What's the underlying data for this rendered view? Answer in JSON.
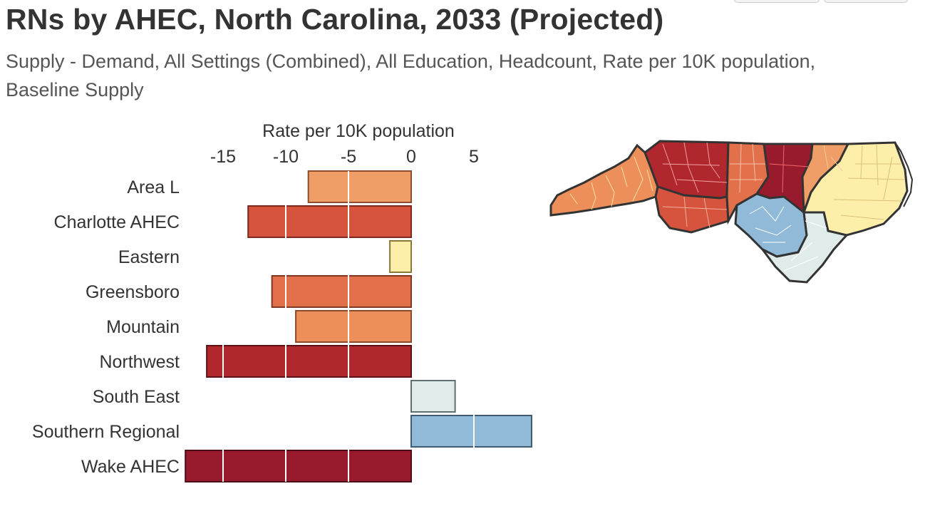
{
  "title": "RNs by AHEC, North Carolina, 2033 (Projected)",
  "subtitle": "Supply - Demand, All Settings (Combined), All Education, Headcount, Rate per 10K population, Baseline Supply",
  "chart_data": {
    "type": "bar",
    "orientation": "horizontal",
    "title": "RNs by AHEC, North Carolina, 2033 (Projected)",
    "xlabel": "Rate per 10K population",
    "ylabel": "",
    "xlim": [
      -18,
      9
    ],
    "x_ticks": [
      -15,
      -10,
      -5,
      0,
      5
    ],
    "x_tick_labels": [
      "-15",
      "-10",
      "-5",
      "0",
      "5"
    ],
    "grid": true,
    "categories": [
      "Area L",
      "Charlotte AHEC",
      "Eastern",
      "Greensboro",
      "Mountain",
      "Northwest",
      "South East",
      "Southern Regional",
      "Wake AHEC"
    ],
    "values": [
      -8.2,
      -13.0,
      -1.7,
      -11.1,
      -9.2,
      -16.3,
      3.5,
      9.6,
      -18.0
    ],
    "colors": [
      "#ee9e66",
      "#d6533d",
      "#fdeeaa",
      "#e2704b",
      "#ec8f5b",
      "#b1272e",
      "#e0ecea",
      "#90bad8",
      "#981b2d"
    ],
    "borders": [
      "#8a4e2e",
      "#7b2a1f",
      "#8a7a3a",
      "#7e3a25",
      "#8a4a2b",
      "#5a1216",
      "#5f6f6d",
      "#3f5c72",
      "#4d0c16"
    ]
  },
  "map": {
    "regions": [
      {
        "name": "Mountain",
        "color": "#ec8f5b"
      },
      {
        "name": "Northwest",
        "color": "#b1272e"
      },
      {
        "name": "Charlotte AHEC",
        "color": "#d6533d"
      },
      {
        "name": "Greensboro",
        "color": "#e2704b"
      },
      {
        "name": "Wake AHEC",
        "color": "#981b2d"
      },
      {
        "name": "Area L",
        "color": "#ee9e66"
      },
      {
        "name": "Eastern",
        "color": "#fdeeaa"
      },
      {
        "name": "Southern Regional",
        "color": "#90bad8"
      },
      {
        "name": "South East",
        "color": "#e0ecea"
      }
    ]
  }
}
